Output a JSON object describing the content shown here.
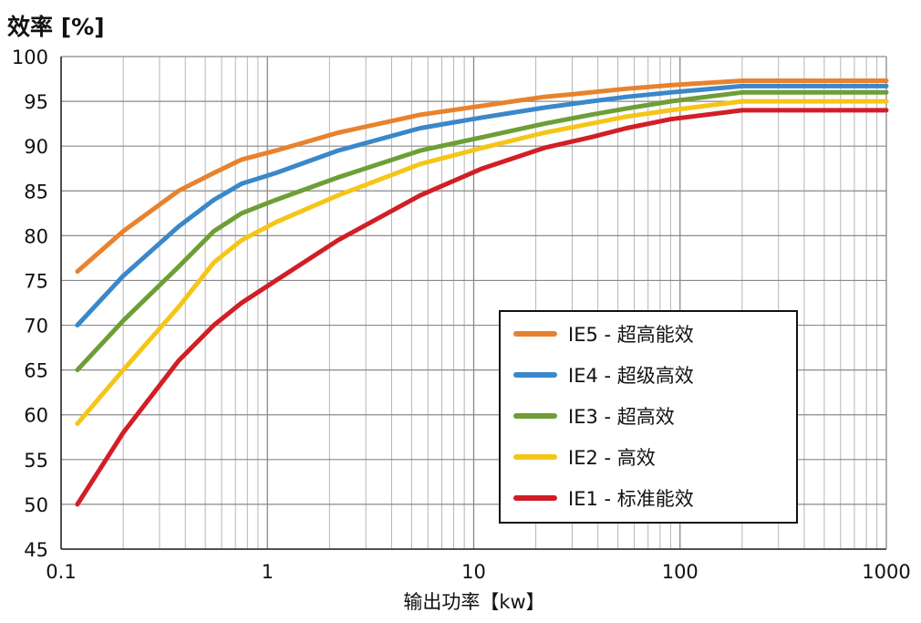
{
  "chart_data": {
    "type": "line",
    "ylabel": "效率 [%]",
    "xlabel": "输出功率【kw】",
    "x_scale": "log",
    "xlim": [
      0.1,
      1000
    ],
    "ylim": [
      45,
      100
    ],
    "x_ticks": [
      0.1,
      1,
      10,
      100,
      1000
    ],
    "x_tick_labels": [
      "0.1",
      "1",
      "10",
      "100",
      "1000"
    ],
    "y_ticks": [
      45,
      50,
      55,
      60,
      65,
      70,
      75,
      80,
      85,
      90,
      95,
      100
    ],
    "y_tick_labels": [
      "45",
      "50",
      "55",
      "60",
      "65",
      "70",
      "75",
      "80",
      "85",
      "90",
      "95",
      "100"
    ],
    "grid": true,
    "legend_position": "bottom-right",
    "x": [
      0.12,
      0.2,
      0.37,
      0.55,
      0.75,
      1.1,
      2.2,
      5.5,
      11,
      22,
      37,
      55,
      90,
      200,
      375,
      1000
    ],
    "series": [
      {
        "name": "IE5 - 超高能效",
        "color": "#E8822E",
        "values": [
          76.0,
          80.5,
          85.0,
          87.0,
          88.5,
          89.5,
          91.5,
          93.5,
          94.5,
          95.5,
          96.0,
          96.4,
          96.8,
          97.3,
          97.3,
          97.3
        ]
      },
      {
        "name": "IE4 - 超级高效",
        "color": "#3A88C9",
        "values": [
          70.0,
          75.5,
          81.0,
          84.0,
          85.8,
          87.0,
          89.5,
          92.0,
          93.2,
          94.3,
          95.0,
          95.5,
          96.0,
          96.7,
          96.7,
          96.7
        ]
      },
      {
        "name": "IE3 - 超高效",
        "color": "#6E9E36",
        "values": [
          65.0,
          70.5,
          76.5,
          80.5,
          82.5,
          84.0,
          86.5,
          89.5,
          91.0,
          92.5,
          93.5,
          94.2,
          95.0,
          96.0,
          96.0,
          96.0
        ]
      },
      {
        "name": "IE2 - 高效",
        "color": "#F5C518",
        "values": [
          59.0,
          65.0,
          72.0,
          77.0,
          79.5,
          81.5,
          84.5,
          88.0,
          89.8,
          91.5,
          92.5,
          93.3,
          94.0,
          95.0,
          95.0,
          95.0
        ]
      },
      {
        "name": "IE1 - 标准能效",
        "color": "#D21E26",
        "values": [
          50.0,
          58.0,
          66.0,
          70.0,
          72.5,
          75.0,
          79.5,
          84.5,
          87.5,
          89.8,
          91.0,
          92.0,
          93.0,
          94.0,
          94.0,
          94.0
        ]
      }
    ]
  }
}
